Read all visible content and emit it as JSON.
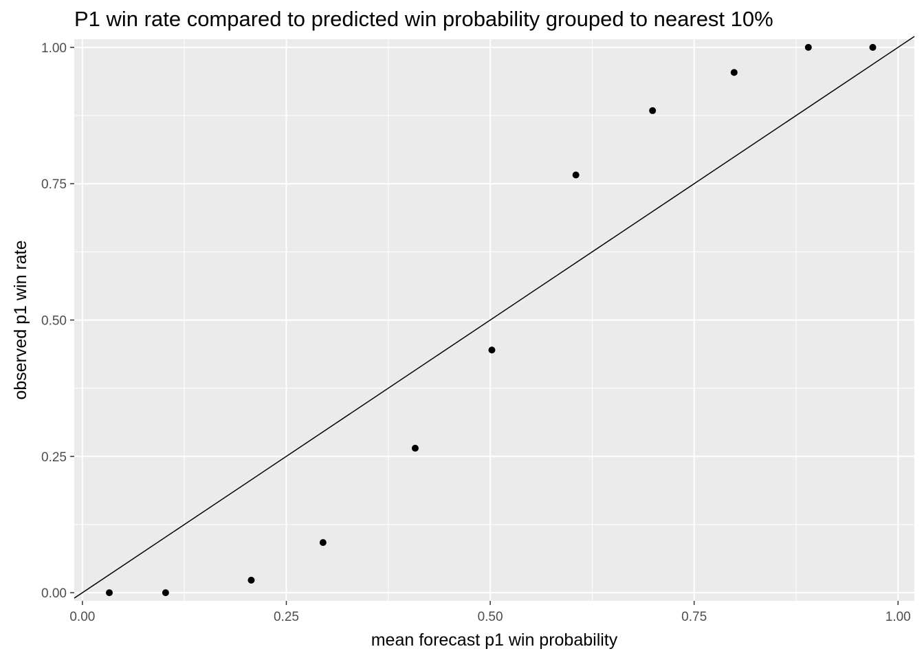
{
  "chart_data": {
    "type": "scatter",
    "title": "P1 win rate compared to predicted win probability grouped to nearest 10%",
    "xlabel": "mean forecast p1 win probability",
    "ylabel": "observed p1 win rate",
    "xlim": [
      -0.01,
      1.02
    ],
    "ylim": [
      -0.015,
      1.015
    ],
    "x_ticks": [
      0.0,
      0.25,
      0.5,
      0.75,
      1.0
    ],
    "x_tick_labels": [
      "0.00",
      "0.25",
      "0.50",
      "0.75",
      "1.00"
    ],
    "y_ticks": [
      0.0,
      0.25,
      0.5,
      0.75,
      1.0
    ],
    "y_tick_labels": [
      "0.00",
      "0.25",
      "0.50",
      "0.75",
      "1.00"
    ],
    "grid": true,
    "reference_line": {
      "intercept": 0,
      "slope": 1
    },
    "points": [
      {
        "x": 0.033,
        "y": 0.0
      },
      {
        "x": 0.102,
        "y": 0.0
      },
      {
        "x": 0.207,
        "y": 0.023
      },
      {
        "x": 0.295,
        "y": 0.092
      },
      {
        "x": 0.408,
        "y": 0.265
      },
      {
        "x": 0.502,
        "y": 0.445
      },
      {
        "x": 0.605,
        "y": 0.766
      },
      {
        "x": 0.699,
        "y": 0.884
      },
      {
        "x": 0.799,
        "y": 0.954
      },
      {
        "x": 0.89,
        "y": 1.0
      },
      {
        "x": 0.969,
        "y": 1.0
      }
    ],
    "colors": {
      "panel": "#ebebeb",
      "grid": "#ffffff",
      "point": "#000000",
      "line": "#000000",
      "tick_text": "#4d4d4d"
    }
  }
}
